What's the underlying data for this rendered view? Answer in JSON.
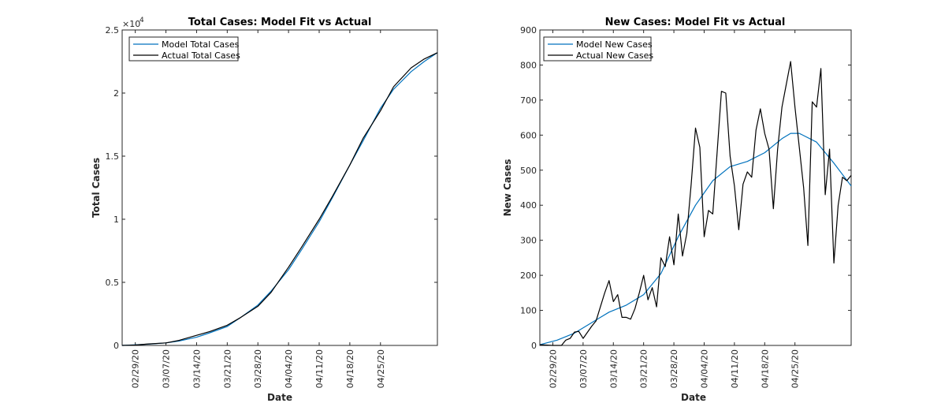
{
  "colors": {
    "model": "#0072BD",
    "actual": "#000000",
    "axis": "#262626"
  },
  "chart_data": [
    {
      "type": "line",
      "title": "Total Cases: Model Fit vs Actual",
      "xlabel": "Date",
      "ylabel": "Total Cases",
      "exponent_label": "×10",
      "exponent_value": "4",
      "xlim": [
        "02/26/20",
        "05/08/20"
      ],
      "ylim": [
        0,
        2.5
      ],
      "ytick_values": [
        0,
        0.5,
        1,
        1.5,
        2,
        2.5
      ],
      "ytick_labels": [
        "0",
        "0.5",
        "1",
        "1.5",
        "2",
        "2.5"
      ],
      "xtick_dates": [
        "02/29/20",
        "03/07/20",
        "03/14/20",
        "03/21/20",
        "03/28/20",
        "04/04/20",
        "04/11/20",
        "04/18/20",
        "04/25/20"
      ],
      "legend": {
        "location": "top-left",
        "entries": [
          "Model Total Cases",
          "Actual Total Cases"
        ]
      },
      "series": [
        {
          "name": "Model Total Cases",
          "x": [
            "02/26/20",
            "02/29/20",
            "03/03/20",
            "03/07/20",
            "03/10/20",
            "03/14/20",
            "03/17/20",
            "03/21/20",
            "03/24/20",
            "03/28/20",
            "03/31/20",
            "04/04/20",
            "04/07/20",
            "04/11/20",
            "04/14/20",
            "04/18/20",
            "04/21/20",
            "04/25/20",
            "04/28/20",
            "05/02/20",
            "05/05/20",
            "05/08/20"
          ],
          "y": [
            0.0,
            0.005,
            0.01,
            0.02,
            0.035,
            0.065,
            0.1,
            0.15,
            0.22,
            0.32,
            0.43,
            0.6,
            0.76,
            0.98,
            1.17,
            1.43,
            1.62,
            1.88,
            2.03,
            2.17,
            2.25,
            2.32
          ]
        },
        {
          "name": "Actual Total Cases",
          "x": [
            "02/26/20",
            "02/29/20",
            "03/03/20",
            "03/07/20",
            "03/10/20",
            "03/14/20",
            "03/17/20",
            "03/21/20",
            "03/24/20",
            "03/28/20",
            "03/31/20",
            "04/04/20",
            "04/07/20",
            "04/11/20",
            "04/14/20",
            "04/18/20",
            "04/21/20",
            "04/25/20",
            "04/28/20",
            "05/02/20",
            "05/05/20",
            "05/08/20"
          ],
          "y": [
            0.0,
            0.003,
            0.012,
            0.02,
            0.04,
            0.08,
            0.11,
            0.16,
            0.22,
            0.31,
            0.42,
            0.62,
            0.78,
            1.0,
            1.18,
            1.43,
            1.64,
            1.86,
            2.05,
            2.2,
            2.27,
            2.32
          ]
        }
      ]
    },
    {
      "type": "line",
      "title": "New Cases: Model Fit vs Actual",
      "xlabel": "Date",
      "ylabel": "New Cases",
      "xlim": [
        "02/26/20",
        "05/08/20"
      ],
      "ylim": [
        0,
        900
      ],
      "ytick_values": [
        0,
        100,
        200,
        300,
        400,
        500,
        600,
        700,
        800,
        900
      ],
      "ytick_labels": [
        "0",
        "100",
        "200",
        "300",
        "400",
        "500",
        "600",
        "700",
        "800",
        "900"
      ],
      "xtick_dates": [
        "02/29/20",
        "03/07/20",
        "03/14/20",
        "03/21/20",
        "03/28/20",
        "04/04/20",
        "04/11/20",
        "04/18/20",
        "04/25/20"
      ],
      "legend": {
        "location": "top-left",
        "entries": [
          "Model New Cases",
          "Actual New Cases"
        ]
      },
      "series": [
        {
          "name": "Model New Cases",
          "x": [
            "02/26/20",
            "03/01/20",
            "03/05/20",
            "03/09/20",
            "03/13/20",
            "03/17/20",
            "03/21/20",
            "03/25/20",
            "03/29/20",
            "04/02/20",
            "04/06/20",
            "04/10/20",
            "04/14/20",
            "04/18/20",
            "04/22/20",
            "04/24/20",
            "04/26/20",
            "04/30/20",
            "05/04/20",
            "05/08/20"
          ],
          "y": [
            2,
            15,
            35,
            65,
            95,
            115,
            145,
            205,
            310,
            400,
            470,
            510,
            525,
            550,
            590,
            605,
            605,
            580,
            520,
            455
          ]
        },
        {
          "name": "Actual New Cases",
          "x": [
            "02/26/20",
            "02/29/20",
            "03/02/20",
            "03/03/20",
            "03/04/20",
            "03/05/20",
            "03/06/20",
            "03/07/20",
            "03/09/20",
            "03/10/20",
            "03/12/20",
            "03/13/20",
            "03/14/20",
            "03/15/20",
            "03/16/20",
            "03/17/20",
            "03/18/20",
            "03/19/20",
            "03/20/20",
            "03/21/20",
            "03/22/20",
            "03/23/20",
            "03/24/20",
            "03/25/20",
            "03/26/20",
            "03/27/20",
            "03/28/20",
            "03/29/20",
            "03/30/20",
            "03/31/20",
            "04/01/20",
            "04/02/20",
            "04/03/20",
            "04/04/20",
            "04/05/20",
            "04/06/20",
            "04/07/20",
            "04/08/20",
            "04/09/20",
            "04/10/20",
            "04/11/20",
            "04/12/20",
            "04/13/20",
            "04/14/20",
            "04/15/20",
            "04/16/20",
            "04/17/20",
            "04/18/20",
            "04/19/20",
            "04/20/20",
            "04/21/20",
            "04/22/20",
            "04/23/20",
            "04/24/20",
            "04/25/20",
            "04/27/20",
            "04/28/20",
            "04/29/20",
            "04/30/20",
            "05/01/20",
            "05/02/20",
            "05/03/20",
            "05/04/20",
            "05/05/20",
            "05/06/20",
            "05/07/20",
            "05/08/20"
          ],
          "y": [
            2,
            0,
            0,
            15,
            20,
            38,
            40,
            20,
            55,
            70,
            150,
            185,
            125,
            145,
            80,
            80,
            75,
            105,
            150,
            200,
            130,
            165,
            110,
            250,
            225,
            310,
            230,
            375,
            255,
            320,
            460,
            620,
            565,
            310,
            385,
            375,
            550,
            725,
            720,
            540,
            455,
            330,
            460,
            495,
            480,
            615,
            675,
            605,
            560,
            390,
            560,
            680,
            745,
            810,
            680,
            450,
            285,
            695,
            680,
            790,
            430,
            560,
            235,
            400,
            480,
            470,
            485
          ]
        }
      ]
    }
  ]
}
